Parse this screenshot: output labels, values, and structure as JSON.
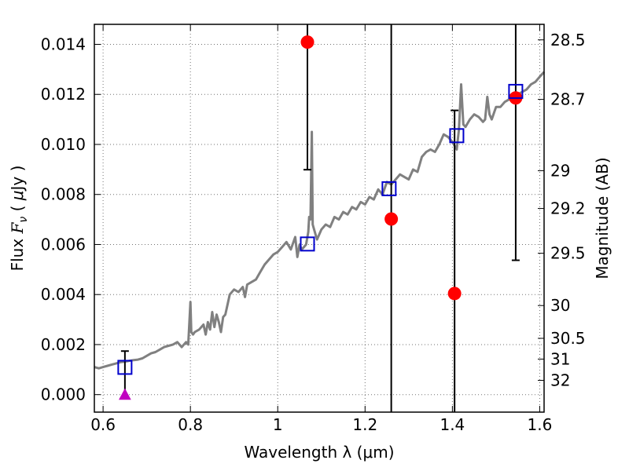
{
  "chart_data": {
    "type": "line",
    "xlabel": "Wavelength  λ (μm)",
    "ylabel": "Flux  F_ν  ( μJy )",
    "ylabel_parts": [
      "Flux ",
      "F",
      "ν",
      " ( ",
      "μ",
      "Jy )"
    ],
    "ylabel_right": "Magnitude (AB)",
    "xlim": [
      0.58,
      1.61
    ],
    "ylim": [
      -0.0007,
      0.0148
    ],
    "grid": true,
    "x_ticks": [
      0.6,
      0.8,
      1.0,
      1.2,
      1.4,
      1.6
    ],
    "x_tick_labels": [
      "0.6",
      "0.8",
      "1",
      "1.2",
      "1.4",
      "1.6"
    ],
    "y_ticks": [
      0.0,
      0.002,
      0.004,
      0.006,
      0.008,
      0.01,
      0.012,
      0.014
    ],
    "y_tick_labels": [
      "0.000",
      "0.002",
      "0.004",
      "0.006",
      "0.008",
      "0.010",
      "0.012",
      "0.014"
    ],
    "right_ticks": [
      {
        "label": "28.5",
        "flux": 0.01418
      },
      {
        "label": "28.7",
        "flux": 0.0118
      },
      {
        "label": "29",
        "flux": 0.00895
      },
      {
        "label": "29.2",
        "flux": 0.00744
      },
      {
        "label": "29.5",
        "flux": 0.00565
      },
      {
        "label": "30",
        "flux": 0.00356
      },
      {
        "label": "30.5",
        "flux": 0.00225
      },
      {
        "label": "31",
        "flux": 0.00142
      },
      {
        "label": "32",
        "flux": 0.00057
      }
    ],
    "series": [
      {
        "kind": "line",
        "color": "#808080",
        "x": [
          0.58,
          0.59,
          0.6,
          0.61,
          0.62,
          0.63,
          0.64,
          0.65,
          0.66,
          0.67,
          0.68,
          0.69,
          0.7,
          0.71,
          0.72,
          0.73,
          0.74,
          0.75,
          0.76,
          0.77,
          0.78,
          0.79,
          0.795,
          0.8,
          0.802,
          0.806,
          0.81,
          0.82,
          0.83,
          0.835,
          0.84,
          0.845,
          0.85,
          0.855,
          0.86,
          0.865,
          0.87,
          0.875,
          0.88,
          0.885,
          0.89,
          0.9,
          0.91,
          0.92,
          0.925,
          0.93,
          0.94,
          0.95,
          0.96,
          0.97,
          0.98,
          0.99,
          1.0,
          1.01,
          1.02,
          1.03,
          1.04,
          1.045,
          1.05,
          1.055,
          1.06,
          1.065,
          1.07,
          1.072,
          1.075,
          1.078,
          1.08,
          1.085,
          1.09,
          1.1,
          1.11,
          1.12,
          1.13,
          1.14,
          1.15,
          1.16,
          1.17,
          1.18,
          1.19,
          1.2,
          1.21,
          1.22,
          1.23,
          1.24,
          1.25,
          1.26,
          1.27,
          1.28,
          1.29,
          1.3,
          1.31,
          1.32,
          1.33,
          1.34,
          1.35,
          1.36,
          1.37,
          1.38,
          1.39,
          1.4,
          1.41,
          1.415,
          1.42,
          1.425,
          1.43,
          1.44,
          1.45,
          1.46,
          1.47,
          1.475,
          1.48,
          1.485,
          1.49,
          1.5,
          1.51,
          1.52,
          1.53,
          1.54,
          1.55,
          1.56,
          1.57,
          1.58,
          1.59,
          1.6,
          1.61
        ],
        "y": [
          0.0011,
          0.00105,
          0.0011,
          0.00115,
          0.0012,
          0.00125,
          0.0013,
          0.00132,
          0.00135,
          0.00138,
          0.0014,
          0.00145,
          0.00155,
          0.00165,
          0.0017,
          0.0018,
          0.0019,
          0.00195,
          0.002,
          0.0021,
          0.0019,
          0.0021,
          0.002,
          0.0037,
          0.0025,
          0.0024,
          0.0025,
          0.0026,
          0.0028,
          0.0024,
          0.0029,
          0.0026,
          0.0033,
          0.0027,
          0.0032,
          0.0029,
          0.0025,
          0.0031,
          0.0032,
          0.0036,
          0.004,
          0.0042,
          0.0041,
          0.0043,
          0.0039,
          0.0044,
          0.0045,
          0.0046,
          0.0049,
          0.0052,
          0.0054,
          0.0056,
          0.0057,
          0.0059,
          0.0061,
          0.0058,
          0.0063,
          0.0055,
          0.006,
          0.0058,
          0.0059,
          0.006,
          0.0065,
          0.0071,
          0.007,
          0.0105,
          0.0068,
          0.0065,
          0.0062,
          0.0066,
          0.0068,
          0.0067,
          0.0071,
          0.007,
          0.0073,
          0.0072,
          0.0075,
          0.0074,
          0.0077,
          0.0076,
          0.0079,
          0.0078,
          0.0082,
          0.008,
          0.0085,
          0.0084,
          0.0086,
          0.0088,
          0.0087,
          0.0086,
          0.009,
          0.0089,
          0.0095,
          0.0097,
          0.0098,
          0.0097,
          0.01,
          0.0104,
          0.0103,
          0.0101,
          0.0098,
          0.0106,
          0.0124,
          0.0108,
          0.0107,
          0.011,
          0.0112,
          0.0111,
          0.0109,
          0.011,
          0.0119,
          0.0112,
          0.011,
          0.0115,
          0.0115,
          0.0117,
          0.0118,
          0.0119,
          0.012,
          0.0121,
          0.0122,
          0.0124,
          0.0125,
          0.0127,
          0.0129
        ]
      },
      {
        "kind": "markers",
        "marker": "circle",
        "color": "#ff0000",
        "x": [
          1.068,
          1.26,
          1.405,
          1.545
        ],
        "y": [
          0.01409,
          0.00702,
          0.00404,
          0.01186
        ],
        "error_low": [
          0.00899,
          -0.001,
          -0.001,
          0.00537
        ],
        "error_high": [
          0.0148,
          0.0148,
          0.01136,
          0.0148
        ]
      },
      {
        "kind": "markers",
        "marker": "square",
        "color": "#0000cc",
        "x": [
          0.65,
          1.068,
          1.255,
          1.41,
          1.545
        ],
        "y": [
          0.00109,
          0.00602,
          0.00823,
          0.01035,
          0.01212
        ],
        "error_low": [
          -0.0001,
          null,
          null,
          null,
          null
        ],
        "error_high": [
          0.00174,
          null,
          null,
          null,
          null
        ]
      },
      {
        "kind": "markers",
        "marker": "triangle",
        "color": "#c000c0",
        "x": [
          0.65
        ],
        "y": [
          0.0
        ]
      }
    ]
  }
}
